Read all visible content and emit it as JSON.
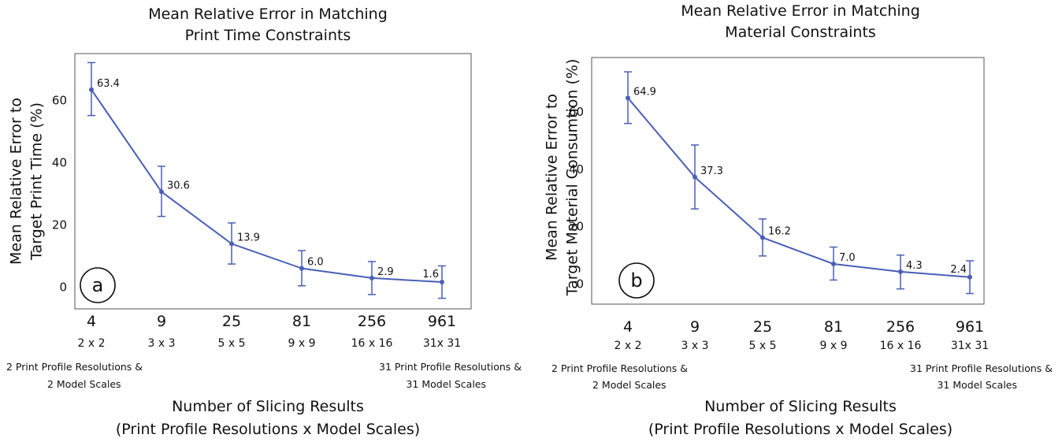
{
  "chart_data": [
    {
      "type": "line",
      "title": [
        "Mean Relative Error in Matching",
        "Print Time Constraints"
      ],
      "ylabel": [
        "Mean Relative Error to",
        "Target Print Time (%)"
      ],
      "xlabel": [
        "Number of Slicing Results",
        "(Print Profile Resolutions x Model Scales)"
      ],
      "panel_label": "a",
      "categories": [
        "4",
        "9",
        "25",
        "81",
        "256",
        "961"
      ],
      "category_sublabels": [
        "2 x 2",
        "3 x 3",
        "5 x 5",
        "9 x 9",
        "16 x 16",
        "31x 31"
      ],
      "left_note": [
        "2 Print Profile Resolutions &",
        "2 Model Scales"
      ],
      "right_note": [
        "31 Print Profile Resolutions &",
        "31 Model Scales"
      ],
      "y_ticks": [
        0,
        20,
        40,
        60
      ],
      "ylim": [
        -7,
        75
      ],
      "grid": false,
      "color": "#4a5fb5",
      "series": [
        {
          "values": [
            63.4,
            30.6,
            13.9,
            6.0,
            2.9,
            1.6
          ],
          "value_labels": [
            "63.4",
            "30.6",
            "13.9",
            "6.0",
            "2.9",
            "1.6"
          ],
          "error_low": [
            55.1,
            22.7,
            7.4,
            0.4,
            -2.4,
            -3.6
          ],
          "error_high": [
            72.1,
            38.8,
            20.6,
            11.7,
            8.2,
            6.8
          ]
        }
      ]
    },
    {
      "type": "line",
      "title": [
        "Mean Relative Error in Matching",
        "Material Constraints"
      ],
      "ylabel": [
        "Mean Relative Error to",
        "Target Material Consumtion (%)"
      ],
      "xlabel": [
        "Number of Slicing Results",
        "(Print Profile Resolutions  x Model Scales)"
      ],
      "panel_label": "b",
      "categories": [
        "4",
        "9",
        "25",
        "81",
        "256",
        "961"
      ],
      "category_sublabels": [
        "2 x 2",
        "3 x 3",
        "5 x 5",
        "9 x 9",
        "16 x 16",
        "31x 31"
      ],
      "left_note": [
        "2 Print Profile Resolutions &",
        "2 Model Scales"
      ],
      "right_note": [
        "31 Print Profile Resolutions &",
        "31 Model Scales"
      ],
      "y_ticks": [
        0,
        20,
        40,
        60
      ],
      "ylim": [
        -7,
        79
      ],
      "grid": false,
      "color": "#4a5fb5",
      "series": [
        {
          "values": [
            64.9,
            37.3,
            16.2,
            7.0,
            4.3,
            2.4
          ],
          "value_labels": [
            "64.9",
            "37.3",
            "16.2",
            "7.0",
            "4.3",
            "2.4"
          ],
          "error_low": [
            56.0,
            26.2,
            9.8,
            1.4,
            -1.7,
            -3.3
          ],
          "error_high": [
            74.0,
            48.5,
            22.7,
            12.9,
            10.1,
            8.1
          ]
        }
      ]
    }
  ]
}
